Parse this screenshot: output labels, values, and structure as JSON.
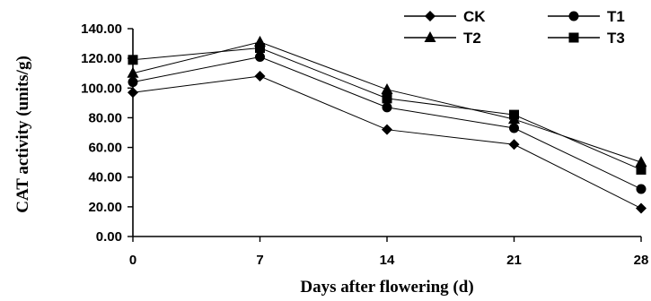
{
  "chart_data": {
    "type": "line",
    "title": "",
    "xlabel": "Days after flowering (d)",
    "ylabel": "CAT activity (units/g)",
    "x": [
      0,
      7,
      14,
      21,
      28
    ],
    "x_tick_labels": [
      "0",
      "7",
      "14",
      "21",
      "28"
    ],
    "ylim": [
      0,
      140
    ],
    "y_ticks": [
      0,
      20,
      40,
      60,
      80,
      100,
      120,
      140
    ],
    "y_tick_labels": [
      "0.00",
      "20.00",
      "40.00",
      "60.00",
      "80.00",
      "100.00",
      "120.00",
      "140.00"
    ],
    "grid": false,
    "legend_position": "top-right",
    "series": [
      {
        "name": "CK",
        "marker": "diamond",
        "values": [
          97,
          108,
          72,
          62,
          19
        ]
      },
      {
        "name": "T1",
        "marker": "circle",
        "values": [
          104,
          121,
          87,
          73,
          32
        ]
      },
      {
        "name": "T2",
        "marker": "triangle",
        "values": [
          110,
          131,
          99,
          79,
          50
        ]
      },
      {
        "name": "T3",
        "marker": "square",
        "values": [
          119,
          127,
          93,
          82,
          45
        ]
      }
    ],
    "line_color": "#000000"
  }
}
